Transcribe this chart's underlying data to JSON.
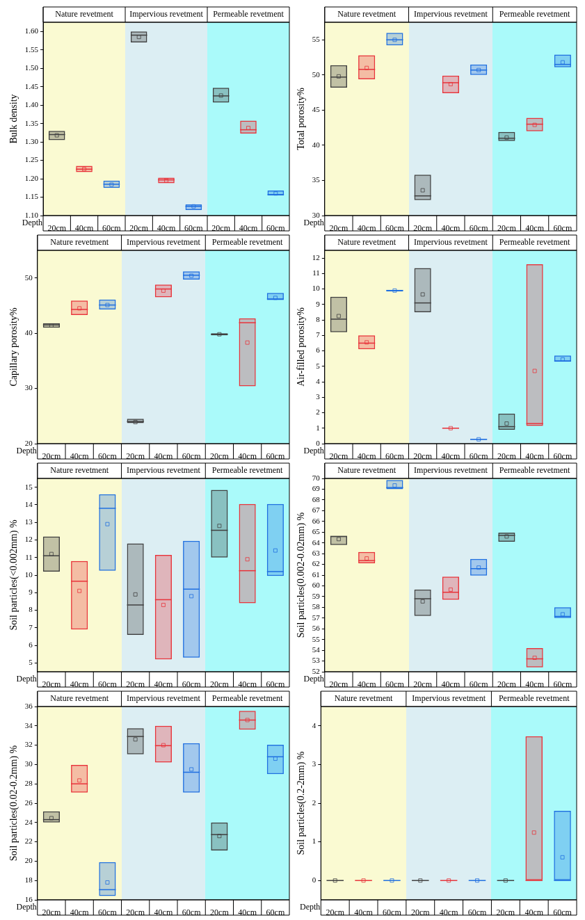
{
  "chart_data": [
    {
      "type": "box",
      "ylabel": "Bulk density",
      "xlabel": "Depth",
      "categories": [
        "20cm",
        "40cm",
        "60cm",
        "20cm",
        "40cm",
        "60cm",
        "20cm",
        "40cm",
        "60cm"
      ],
      "ylim": [
        1.1,
        1.625
      ],
      "yticks": [
        {
          "value": 1.1,
          "label": "1.10"
        },
        {
          "value": 1.15,
          "label": "1.15"
        },
        {
          "value": 1.2,
          "label": "1.20"
        },
        {
          "value": 1.25,
          "label": "1.25"
        },
        {
          "value": 1.3,
          "label": "1.30"
        },
        {
          "value": 1.35,
          "label": "1.35"
        },
        {
          "value": 1.4,
          "label": "1.40"
        },
        {
          "value": 1.45,
          "label": "1.45"
        },
        {
          "value": 1.5,
          "label": "1.50"
        },
        {
          "value": 1.55,
          "label": "1.55"
        },
        {
          "value": 1.6,
          "label": "1.60"
        }
      ],
      "annotations": [
        "Nature revetment",
        "Impervious revetment",
        "Permeable revetment"
      ],
      "series": [
        {
          "colors": [
            "#404040",
            "#e8333a",
            "#1f6fe0",
            "#404040",
            "#e8333a",
            "#1f6fe0",
            "#404040",
            "#e8333a",
            "#1f6fe0"
          ],
          "boxes": [
            {
              "low": 1.305,
              "q1": 1.305,
              "median": 1.32,
              "q3": 1.33,
              "high": 1.33,
              "mean": 1.318
            },
            {
              "low": 1.218,
              "q1": 1.218,
              "median": 1.226,
              "q3": 1.235,
              "high": 1.235,
              "mean": 1.226
            },
            {
              "low": 1.175,
              "q1": 1.175,
              "median": 1.185,
              "q3": 1.195,
              "high": 1.195,
              "mean": 1.184
            },
            {
              "low": 1.57,
              "q1": 1.57,
              "median": 1.59,
              "q3": 1.6,
              "high": 1.6,
              "mean": 1.585
            },
            {
              "low": 1.188,
              "q1": 1.188,
              "median": 1.197,
              "q3": 1.203,
              "high": 1.203,
              "mean": 1.195
            },
            {
              "low": 1.115,
              "q1": 1.115,
              "median": 1.125,
              "q3": 1.13,
              "high": 1.13,
              "mean": 1.125
            },
            {
              "low": 1.407,
              "q1": 1.407,
              "median": 1.425,
              "q3": 1.447,
              "high": 1.447,
              "mean": 1.426
            },
            {
              "low": 1.323,
              "q1": 1.323,
              "median": 1.333,
              "q3": 1.358,
              "high": 1.358,
              "mean": 1.338
            },
            {
              "low": 1.155,
              "q1": 1.155,
              "median": 1.157,
              "q3": 1.168,
              "high": 1.168,
              "mean": 1.16
            }
          ]
        }
      ]
    },
    {
      "type": "box",
      "ylabel": "Total porosity%",
      "xlabel": "Depth",
      "categories": [
        "20cm",
        "40cm",
        "60cm",
        "20cm",
        "40cm",
        "60cm",
        "20cm",
        "40cm",
        "60cm"
      ],
      "ylim": [
        30,
        57.5
      ],
      "yticks": [
        30,
        35,
        40,
        45,
        50,
        55
      ],
      "annotations": [
        "Nature revetment",
        "Impervious revetment",
        "Permeable revetment"
      ],
      "series": [
        {
          "colors": [
            "#404040",
            "#e8333a",
            "#1f6fe0",
            "#404040",
            "#e8333a",
            "#1f6fe0",
            "#404040",
            "#e8333a",
            "#1f6fe0"
          ],
          "boxes": [
            {
              "low": 48.2,
              "q1": 48.2,
              "median": 49.7,
              "q3": 51.4,
              "high": 51.4,
              "mean": 49.8
            },
            {
              "low": 49.4,
              "q1": 49.4,
              "median": 50.8,
              "q3": 52.8,
              "high": 52.8,
              "mean": 51
            },
            {
              "low": 54.2,
              "q1": 54.2,
              "median": 55,
              "q3": 56,
              "high": 56,
              "mean": 55
            },
            {
              "low": 32.2,
              "q1": 32.2,
              "median": 32.8,
              "q3": 35.8,
              "high": 35.8,
              "mean": 33.6
            },
            {
              "low": 47.4,
              "q1": 47.4,
              "median": 48.9,
              "q3": 49.9,
              "high": 49.9,
              "mean": 48.7
            },
            {
              "low": 50,
              "q1": 50,
              "median": 50.7,
              "q3": 51.5,
              "high": 51.5,
              "mean": 50.7
            },
            {
              "low": 40.6,
              "q1": 40.6,
              "median": 41,
              "q3": 41.9,
              "high": 41.9,
              "mean": 41.1
            },
            {
              "low": 42,
              "q1": 42,
              "median": 43,
              "q3": 43.9,
              "high": 43.9,
              "mean": 42.9
            },
            {
              "low": 51.1,
              "q1": 51.1,
              "median": 51.5,
              "q3": 52.9,
              "high": 52.9,
              "mean": 51.8
            }
          ]
        }
      ]
    },
    {
      "type": "box",
      "ylabel": "Capillary porosity%",
      "xlabel": "Depth",
      "categories": [
        "20cm",
        "40cm",
        "60cm",
        "20cm",
        "40cm",
        "60cm",
        "20cm",
        "40cm",
        "60cm"
      ],
      "ylim": [
        20,
        55
      ],
      "yticks": [
        20,
        30,
        40,
        50
      ],
      "annotations": [
        "Nature revetment",
        "Impervious revetment",
        "Permeable revetment"
      ],
      "series": [
        {
          "colors": [
            "#404040",
            "#e8333a",
            "#1f6fe0",
            "#404040",
            "#e8333a",
            "#1f6fe0",
            "#404040",
            "#e8333a",
            "#1f6fe0"
          ],
          "boxes": [
            {
              "low": 41,
              "q1": 41,
              "median": 41.5,
              "q3": 41.8,
              "high": 41.8,
              "mean": 41.4
            },
            {
              "low": 43.3,
              "q1": 43.3,
              "median": 44.3,
              "q3": 45.9,
              "high": 45.9,
              "mean": 44.5
            },
            {
              "low": 44.3,
              "q1": 44.3,
              "median": 45.1,
              "q3": 46.1,
              "high": 46.1,
              "mean": 45.1
            },
            {
              "low": 23.7,
              "q1": 23.7,
              "median": 24,
              "q3": 24.5,
              "high": 24.5,
              "mean": 23.9
            },
            {
              "low": 46.5,
              "q1": 46.5,
              "median": 48,
              "q3": 48.8,
              "high": 48.8,
              "mean": 47.7
            },
            {
              "low": 49.7,
              "q1": 49.7,
              "median": 50.5,
              "q3": 51.2,
              "high": 51.2,
              "mean": 50.4
            },
            {
              "low": 39.6,
              "q1": 39.6,
              "median": 39.8,
              "q3": 40,
              "high": 40,
              "mean": 39.8
            },
            {
              "low": 30.4,
              "q1": 30.4,
              "median": 41.9,
              "q3": 42.7,
              "high": 42.7,
              "mean": 38.3
            },
            {
              "low": 46,
              "q1": 46,
              "median": 46.2,
              "q3": 47.3,
              "high": 47.3,
              "mean": 46.4
            }
          ]
        }
      ]
    },
    {
      "type": "box",
      "ylabel": "Air-filled porosity%",
      "xlabel": "Depth",
      "categories": [
        "20cm",
        "40cm",
        "60cm",
        "20cm",
        "40cm",
        "60cm",
        "20cm",
        "40cm",
        "60cm"
      ],
      "ylim": [
        0,
        12.5
      ],
      "yticks": [
        0,
        1,
        2,
        3,
        4,
        5,
        6,
        7,
        8,
        9,
        10,
        11,
        12
      ],
      "annotations": [
        "Nature revetment",
        "Impervious revetment",
        "Permeable revetment"
      ],
      "series": [
        {
          "colors": [
            "#404040",
            "#e8333a",
            "#1f6fe0",
            "#404040",
            "#e8333a",
            "#1f6fe0",
            "#404040",
            "#e8333a",
            "#1f6fe0"
          ],
          "boxes": [
            {
              "low": 7.2,
              "q1": 7.2,
              "median": 8.05,
              "q3": 9.5,
              "high": 9.5,
              "mean": 8.25
            },
            {
              "low": 6.1,
              "q1": 6.1,
              "median": 6.5,
              "q3": 7,
              "high": 7,
              "mean": 6.55
            },
            {
              "low": 9.85,
              "q1": 9.85,
              "median": 9.9,
              "q3": 9.95,
              "high": 9.95,
              "mean": 9.9
            },
            {
              "low": 8.5,
              "q1": 8.5,
              "median": 9.1,
              "q3": 11.35,
              "high": 11.35,
              "mean": 9.65
            },
            {
              "low": 0.98,
              "q1": 0.98,
              "median": 1,
              "q3": 1.02,
              "high": 1.02,
              "mean": 1
            },
            {
              "low": 0.25,
              "q1": 0.25,
              "median": 0.28,
              "q3": 0.3,
              "high": 0.3,
              "mean": 0.28
            },
            {
              "low": 0.9,
              "q1": 0.9,
              "median": 1.1,
              "q3": 1.95,
              "high": 1.95,
              "mean": 1.3
            },
            {
              "low": 1.15,
              "q1": 1.15,
              "median": 1.3,
              "q3": 11.6,
              "high": 11.6,
              "mean": 4.7
            },
            {
              "low": 5.3,
              "q1": 5.3,
              "median": 5.35,
              "q3": 5.7,
              "high": 5.7,
              "mean": 5.45
            }
          ]
        }
      ]
    },
    {
      "type": "box",
      "ylabel": "Soil particles(<0.002mm) %",
      "xlabel": "Depth",
      "categories": [
        "20cm",
        "40cm",
        "60cm",
        "20cm",
        "40cm",
        "60cm",
        "20cm",
        "40cm",
        "60cm"
      ],
      "ylim": [
        4.5,
        15.5
      ],
      "yticks": [
        5,
        6,
        7,
        8,
        9,
        10,
        11,
        12,
        13,
        14,
        15
      ],
      "annotations": [
        "Nature revetment",
        "Impervious revetment",
        "Permeable revetment"
      ],
      "series": [
        {
          "colors": [
            "#404040",
            "#e8333a",
            "#1f6fe0",
            "#404040",
            "#e8333a",
            "#1f6fe0",
            "#404040",
            "#e8333a",
            "#1f6fe0"
          ],
          "boxes": [
            {
              "low": 10.2,
              "q1": 10.2,
              "median": 11.1,
              "q3": 12.2,
              "high": 12.2,
              "mean": 11.2
            },
            {
              "low": 6.9,
              "q1": 6.9,
              "median": 9.65,
              "q3": 10.8,
              "high": 10.8,
              "mean": 9.1
            },
            {
              "low": 10.25,
              "q1": 10.25,
              "median": 13.8,
              "q3": 14.6,
              "high": 14.6,
              "mean": 12.9
            },
            {
              "low": 6.6,
              "q1": 6.6,
              "median": 8.3,
              "q3": 11.8,
              "high": 11.8,
              "mean": 8.9
            },
            {
              "low": 5.2,
              "q1": 5.2,
              "median": 8.6,
              "q3": 11.15,
              "high": 11.15,
              "mean": 8.3
            },
            {
              "low": 5.3,
              "q1": 5.3,
              "median": 9.2,
              "q3": 11.95,
              "high": 11.95,
              "mean": 8.8
            },
            {
              "low": 11,
              "q1": 11,
              "median": 12.55,
              "q3": 14.85,
              "high": 14.85,
              "mean": 12.8
            },
            {
              "low": 8.4,
              "q1": 8.4,
              "median": 10.25,
              "q3": 14.05,
              "high": 14.05,
              "mean": 10.9
            },
            {
              "low": 9.95,
              "q1": 9.95,
              "median": 10.2,
              "q3": 14.05,
              "high": 14.05,
              "mean": 11.4
            }
          ]
        }
      ]
    },
    {
      "type": "box",
      "ylabel": "Soil particles(0.002-0.02mm) %",
      "xlabel": "Depth",
      "categories": [
        "20cm",
        "40cm",
        "60cm",
        "20cm",
        "40cm",
        "60cm",
        "20cm",
        "40cm",
        "60cm"
      ],
      "ylim": [
        52,
        70
      ],
      "yticks": [
        52,
        53,
        54,
        55,
        56,
        57,
        58,
        59,
        60,
        61,
        62,
        63,
        64,
        65,
        66,
        67,
        68,
        69,
        70
      ],
      "annotations": [
        "Nature revetment",
        "Impervious revetment",
        "Permeable revetment"
      ],
      "series": [
        {
          "colors": [
            "#404040",
            "#e8333a",
            "#1f6fe0",
            "#404040",
            "#e8333a",
            "#1f6fe0",
            "#404040",
            "#e8333a",
            "#1f6fe0"
          ],
          "boxes": [
            {
              "low": 63.8,
              "q1": 63.8,
              "median": 64.6,
              "q3": 64.65,
              "high": 64.65,
              "mean": 64.35
            },
            {
              "low": 62.1,
              "q1": 62.1,
              "median": 62.35,
              "q3": 63.15,
              "high": 63.15,
              "mean": 62.55
            },
            {
              "low": 69,
              "q1": 69,
              "median": 69.15,
              "q3": 69.85,
              "high": 69.85,
              "mean": 69.35
            },
            {
              "low": 57.2,
              "q1": 57.2,
              "median": 58.8,
              "q3": 59.65,
              "high": 59.65,
              "mean": 58.55
            },
            {
              "low": 58.7,
              "q1": 58.7,
              "median": 59.4,
              "q3": 60.85,
              "high": 60.85,
              "mean": 59.65
            },
            {
              "low": 60.95,
              "q1": 60.95,
              "median": 61.6,
              "q3": 62.5,
              "high": 62.5,
              "mean": 61.7
            },
            {
              "low": 64.1,
              "q1": 64.1,
              "median": 64.7,
              "q3": 64.95,
              "high": 64.95,
              "mean": 64.6
            },
            {
              "low": 52.4,
              "q1": 52.4,
              "median": 53.2,
              "q3": 54.2,
              "high": 54.2,
              "mean": 53.3
            },
            {
              "low": 57,
              "q1": 57,
              "median": 57.15,
              "q3": 58,
              "high": 58,
              "mean": 57.35
            }
          ]
        }
      ]
    },
    {
      "type": "box",
      "ylabel": "Soil particles(0.02-0.2mm) %",
      "xlabel": "Depth",
      "categories": [
        "20cm",
        "40cm",
        "60cm",
        "20cm",
        "40cm",
        "60cm",
        "20cm",
        "40cm",
        "60cm"
      ],
      "ylim": [
        16,
        36
      ],
      "yticks": [
        16,
        18,
        20,
        22,
        24,
        26,
        28,
        30,
        32,
        34,
        36
      ],
      "annotations": [
        "Nature revetment",
        "Impervious revetment",
        "Permeable revetment"
      ],
      "series": [
        {
          "colors": [
            "#404040",
            "#e8333a",
            "#1f6fe0",
            "#404040",
            "#e8333a",
            "#1f6fe0",
            "#404040",
            "#e8333a",
            "#1f6fe0"
          ],
          "boxes": [
            {
              "low": 24,
              "q1": 24,
              "median": 24.3,
              "q3": 25.15,
              "high": 25.15,
              "mean": 24.45
            },
            {
              "low": 27.1,
              "q1": 27.1,
              "median": 28,
              "q3": 29.95,
              "high": 29.95,
              "mean": 28.35
            },
            {
              "low": 16.4,
              "q1": 16.4,
              "median": 17.05,
              "q3": 19.9,
              "high": 19.9,
              "mean": 17.8
            },
            {
              "low": 31.05,
              "q1": 31.05,
              "median": 32.9,
              "q3": 33.75,
              "high": 33.75,
              "mean": 32.6
            },
            {
              "low": 30.2,
              "q1": 30.2,
              "median": 31.95,
              "q3": 34,
              "high": 34,
              "mean": 32
            },
            {
              "low": 27.1,
              "q1": 27.1,
              "median": 29.2,
              "q3": 32.2,
              "high": 32.2,
              "mean": 29.5
            },
            {
              "low": 21.1,
              "q1": 21.1,
              "median": 22.75,
              "q3": 24,
              "high": 24,
              "mean": 22.6
            },
            {
              "low": 33.6,
              "q1": 33.6,
              "median": 34.6,
              "q3": 35.55,
              "high": 35.55,
              "mean": 34.6
            },
            {
              "low": 29,
              "q1": 29,
              "median": 30.8,
              "q3": 32.05,
              "high": 32.05,
              "mean": 30.6
            }
          ]
        }
      ]
    },
    {
      "type": "box",
      "ylabel": "Soil particles(0.2-2mm) %",
      "xlabel": "Depth",
      "categories": [
        "20cm",
        "40cm",
        "60cm",
        "20cm",
        "40cm",
        "60cm",
        "20cm",
        "40cm",
        "60cm"
      ],
      "ylim": [
        -0.5,
        4.5
      ],
      "yticks": [
        0,
        1,
        2,
        3,
        4
      ],
      "annotations": [
        "Nature revetment",
        "Impervious revetment",
        "Permeable revetment"
      ],
      "series": [
        {
          "colors": [
            "#404040",
            "#e8333a",
            "#1f6fe0",
            "#404040",
            "#e8333a",
            "#1f6fe0",
            "#404040",
            "#e8333a",
            "#1f6fe0"
          ],
          "boxes": [
            {
              "low": 0,
              "q1": 0,
              "median": 0,
              "q3": 0,
              "high": 0,
              "mean": 0
            },
            {
              "low": 0,
              "q1": 0,
              "median": 0,
              "q3": 0,
              "high": 0,
              "mean": 0
            },
            {
              "low": 0,
              "q1": 0,
              "median": 0,
              "q3": 0,
              "high": 0,
              "mean": 0
            },
            {
              "low": 0,
              "q1": 0,
              "median": 0,
              "q3": 0,
              "high": 0,
              "mean": 0
            },
            {
              "low": 0,
              "q1": 0,
              "median": 0,
              "q3": 0,
              "high": 0,
              "mean": 0
            },
            {
              "low": 0,
              "q1": 0,
              "median": 0,
              "q3": 0,
              "high": 0,
              "mean": 0
            },
            {
              "low": 0,
              "q1": 0,
              "median": 0,
              "q3": 0,
              "high": 0,
              "mean": 0
            },
            {
              "low": 0,
              "q1": 0,
              "median": 0,
              "q3": 3.73,
              "high": 3.73,
              "mean": 1.24
            },
            {
              "low": 0,
              "q1": 0,
              "median": 0,
              "q3": 1.8,
              "high": 1.8,
              "mean": 0.6
            }
          ]
        }
      ]
    }
  ]
}
